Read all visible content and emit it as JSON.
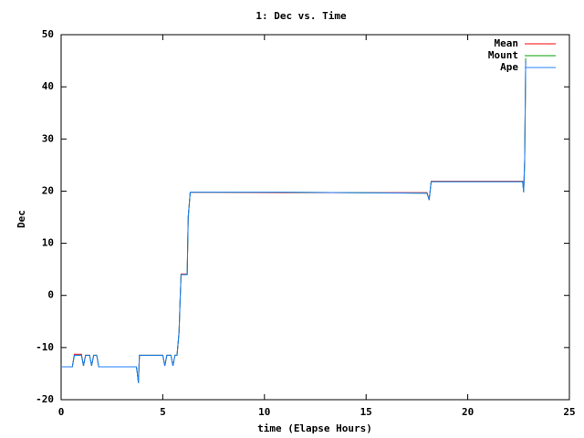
{
  "chart_data": {
    "type": "line",
    "title": "1: Dec vs. Time",
    "x_label": "time (Elapse Hours)",
    "y_label": "Dec",
    "x": [
      0,
      0.55,
      0.65,
      1.0,
      1.1,
      1.2,
      1.4,
      1.5,
      1.6,
      1.75,
      1.85,
      3.7,
      3.75,
      3.8,
      3.85,
      5.0,
      5.1,
      5.2,
      5.4,
      5.5,
      5.6,
      5.7,
      5.8,
      5.85,
      5.9,
      6.2,
      6.25,
      6.35,
      10.9,
      18.0,
      18.1,
      18.2,
      22.7,
      22.75,
      22.8,
      22.85
    ],
    "series": [
      {
        "name": "Mean",
        "color": "#ff0000",
        "values": [
          -13.7,
          -13.7,
          -11.3,
          -11.3,
          -13.5,
          -11.5,
          -11.5,
          -13.5,
          -11.5,
          -11.5,
          -13.7,
          -13.7,
          -15,
          -16.8,
          -11.5,
          -11.5,
          -13.5,
          -11.5,
          -11.5,
          -13.5,
          -11.5,
          -11.5,
          -7,
          -1,
          4.1,
          4.1,
          15,
          19.8,
          19.7,
          19.7,
          18.3,
          21.9,
          21.9,
          19.8,
          26,
          45
        ]
      },
      {
        "name": "Mount",
        "color": "#00a000",
        "values": [
          -13.7,
          -13.7,
          -11.5,
          -11.5,
          -13.5,
          -11.5,
          -11.5,
          -13.5,
          -11.5,
          -11.5,
          -13.7,
          -13.7,
          -15,
          -16.8,
          -11.5,
          -11.5,
          -13.5,
          -11.5,
          -11.5,
          -13.5,
          -11.5,
          -11.5,
          -7,
          -1,
          4,
          4,
          15,
          19.8,
          19.8,
          19.6,
          18.3,
          21.8,
          21.8,
          19.8,
          26,
          45.5
        ]
      },
      {
        "name": "Ape",
        "color": "#2080ff",
        "values": [
          -13.7,
          -13.7,
          -11.5,
          -11.5,
          -13.5,
          -11.5,
          -11.5,
          -13.5,
          -11.5,
          -11.5,
          -13.7,
          -13.7,
          -15,
          -16.8,
          -11.5,
          -11.5,
          -13.5,
          -11.5,
          -11.5,
          -13.5,
          -11.5,
          -11.5,
          -7,
          -1,
          4,
          4,
          15,
          19.8,
          19.8,
          19.6,
          18.3,
          21.8,
          21.8,
          19.8,
          26,
          45
        ]
      }
    ],
    "xlim": [
      0,
      25
    ],
    "xticks": [
      0,
      5,
      10,
      15,
      20,
      25
    ],
    "ylim": [
      -20,
      50
    ],
    "yticks": [
      -20,
      -10,
      0,
      10,
      20,
      30,
      40,
      50
    ],
    "legend": "upper right"
  }
}
